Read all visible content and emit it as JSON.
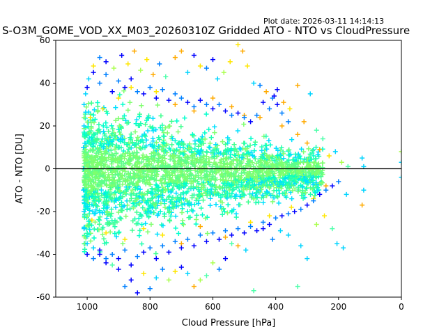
{
  "plot_date": "Plot date: 2026-03-11 14:14:13",
  "chart_data": {
    "type": "scatter",
    "title": "S-O3M_GOME_VOD_XX_M03_20260310Z Gridded ATO - NTO vs CloudPressure",
    "xlabel": "Cloud Pressure [hPa]",
    "ylabel": "ATO - NTO [DU]",
    "xlim": [
      1100,
      0
    ],
    "ylim": [
      -60,
      60
    ],
    "x_inverted": true,
    "xticks": [
      1000,
      800,
      600,
      400,
      200,
      0
    ],
    "yticks": [
      -60,
      -40,
      -20,
      0,
      20,
      40,
      60
    ],
    "marker": "+",
    "reference_line_y": 0,
    "grid": false,
    "colors": [
      "#0000ff",
      "#0080ff",
      "#00d4ff",
      "#4dffaa",
      "#aaff4d",
      "#ffe600",
      "#ffaa00"
    ],
    "points": [
      [
        1005,
        35,
        2
      ],
      [
        995,
        42,
        2
      ],
      [
        980,
        48,
        5
      ],
      [
        960,
        52,
        1
      ],
      [
        940,
        50,
        0
      ],
      [
        915,
        47,
        4
      ],
      [
        890,
        53,
        0
      ],
      [
        870,
        49,
        5
      ],
      [
        850,
        55,
        6
      ],
      [
        830,
        46,
        4
      ],
      [
        810,
        51,
        5
      ],
      [
        790,
        44,
        6
      ],
      [
        770,
        49,
        1
      ],
      [
        750,
        43,
        3
      ],
      [
        720,
        52,
        6
      ],
      [
        700,
        55,
        6
      ],
      [
        680,
        45,
        2
      ],
      [
        660,
        53,
        0
      ],
      [
        640,
        48,
        5
      ],
      [
        620,
        47,
        1
      ],
      [
        600,
        51,
        0
      ],
      [
        585,
        42,
        2
      ],
      [
        565,
        45,
        4
      ],
      [
        545,
        50,
        5
      ],
      [
        520,
        58,
        5
      ],
      [
        505,
        55,
        6
      ],
      [
        490,
        48,
        5
      ],
      [
        470,
        40,
        2
      ],
      [
        450,
        39,
        1
      ],
      [
        430,
        36,
        6
      ],
      [
        410,
        33,
        1
      ],
      [
        395,
        37,
        0
      ],
      [
        375,
        31,
        6
      ],
      [
        355,
        28,
        5
      ],
      [
        330,
        39,
        6
      ],
      [
        310,
        22,
        6
      ],
      [
        290,
        35,
        2
      ],
      [
        270,
        18,
        3
      ],
      [
        250,
        14,
        3
      ],
      [
        230,
        6,
        5
      ],
      [
        210,
        8,
        2
      ],
      [
        190,
        3,
        4
      ],
      [
        170,
        1,
        3
      ],
      [
        120,
        1,
        2
      ],
      [
        125,
        5,
        2
      ],
      [
        0,
        8,
        4
      ],
      [
        0,
        3,
        2
      ],
      [
        0,
        -4,
        2
      ],
      [
        120,
        -10,
        2
      ],
      [
        125,
        -17,
        6
      ],
      [
        175,
        -12,
        2
      ],
      [
        185,
        -37,
        2
      ],
      [
        205,
        -35,
        2
      ],
      [
        220,
        -28,
        3
      ],
      [
        245,
        -22,
        5
      ],
      [
        270,
        -26,
        4
      ],
      [
        300,
        -42,
        2
      ],
      [
        320,
        -36,
        2
      ],
      [
        330,
        -55,
        3
      ],
      [
        360,
        -31,
        2
      ],
      [
        385,
        -29,
        2
      ],
      [
        410,
        -33,
        1
      ],
      [
        440,
        -28,
        0
      ],
      [
        470,
        -57,
        3
      ],
      [
        495,
        -38,
        2
      ],
      [
        520,
        -36,
        6
      ],
      [
        540,
        -35,
        3
      ],
      [
        560,
        -42,
        0
      ],
      [
        580,
        -47,
        1
      ],
      [
        600,
        -44,
        4
      ],
      [
        620,
        -50,
        3
      ],
      [
        640,
        -52,
        4
      ],
      [
        660,
        -55,
        6
      ],
      [
        680,
        -49,
        2
      ],
      [
        700,
        -46,
        0
      ],
      [
        720,
        -48,
        5
      ],
      [
        740,
        -52,
        4
      ],
      [
        760,
        -47,
        1
      ],
      [
        780,
        -51,
        2
      ],
      [
        800,
        -56,
        1
      ],
      [
        820,
        -49,
        5
      ],
      [
        840,
        -58,
        0
      ],
      [
        860,
        -52,
        0
      ],
      [
        880,
        -55,
        1
      ],
      [
        900,
        -47,
        0
      ],
      [
        920,
        -45,
        3
      ],
      [
        940,
        -42,
        1
      ],
      [
        960,
        -40,
        0
      ],
      [
        980,
        -37,
        2
      ],
      [
        1000,
        -35,
        2
      ],
      [
        1010,
        -28,
        2
      ],
      [
        1010,
        -20,
        2
      ],
      [
        1012,
        -10,
        2
      ],
      [
        1012,
        0,
        2
      ],
      [
        1012,
        10,
        2
      ],
      [
        1010,
        20,
        2
      ],
      [
        1010,
        30,
        2
      ],
      [
        990,
        24,
        5
      ],
      [
        985,
        -24,
        5
      ],
      [
        950,
        28,
        5
      ],
      [
        940,
        -30,
        5
      ],
      [
        900,
        33,
        5
      ],
      [
        880,
        -33,
        5
      ],
      [
        860,
        38,
        5
      ],
      [
        820,
        -28,
        5
      ],
      [
        780,
        36,
        5
      ],
      [
        760,
        -31,
        5
      ],
      [
        720,
        30,
        6
      ],
      [
        700,
        -35,
        6
      ],
      [
        660,
        27,
        6
      ],
      [
        640,
        -27,
        6
      ],
      [
        600,
        33,
        6
      ],
      [
        560,
        -32,
        6
      ],
      [
        540,
        29,
        6
      ],
      [
        500,
        25,
        6
      ],
      [
        480,
        -25,
        5
      ],
      [
        450,
        24,
        6
      ],
      [
        420,
        -22,
        5
      ],
      [
        380,
        20,
        6
      ],
      [
        350,
        -18,
        5
      ],
      [
        330,
        16,
        6
      ],
      [
        300,
        12,
        6
      ],
      [
        280,
        -14,
        5
      ],
      [
        260,
        9,
        6
      ],
      [
        240,
        -8,
        6
      ],
      [
        1000,
        38,
        0
      ],
      [
        980,
        45,
        0
      ],
      [
        960,
        40,
        1
      ],
      [
        940,
        44,
        1
      ],
      [
        920,
        36,
        0
      ],
      [
        900,
        41,
        1
      ],
      [
        880,
        38,
        0
      ],
      [
        860,
        42,
        0
      ],
      [
        840,
        36,
        1
      ],
      [
        820,
        35,
        0
      ],
      [
        800,
        38,
        1
      ],
      [
        780,
        33,
        0
      ],
      [
        760,
        37,
        1
      ],
      [
        740,
        32,
        0
      ],
      [
        720,
        35,
        1
      ],
      [
        700,
        33,
        1
      ],
      [
        680,
        31,
        0
      ],
      [
        660,
        29,
        1
      ],
      [
        640,
        32,
        0
      ],
      [
        620,
        30,
        1
      ],
      [
        600,
        28,
        0
      ],
      [
        580,
        30,
        1
      ],
      [
        560,
        27,
        0
      ],
      [
        540,
        25,
        1
      ],
      [
        520,
        26,
        0
      ],
      [
        500,
        24,
        1
      ],
      [
        480,
        22,
        0
      ],
      [
        460,
        25,
        1
      ],
      [
        440,
        31,
        0
      ],
      [
        420,
        28,
        1
      ],
      [
        405,
        34,
        0
      ],
      [
        395,
        30,
        0
      ],
      [
        380,
        26,
        1
      ],
      [
        360,
        22,
        1
      ],
      [
        1000,
        -40,
        0
      ],
      [
        980,
        -42,
        1
      ],
      [
        960,
        -38,
        0
      ],
      [
        940,
        -44,
        0
      ],
      [
        920,
        -40,
        1
      ],
      [
        900,
        -42,
        0
      ],
      [
        880,
        -38,
        1
      ],
      [
        860,
        -45,
        0
      ],
      [
        840,
        -41,
        1
      ],
      [
        820,
        -39,
        0
      ],
      [
        800,
        -37,
        1
      ],
      [
        780,
        -42,
        0
      ],
      [
        760,
        -36,
        1
      ],
      [
        740,
        -39,
        0
      ],
      [
        720,
        -34,
        1
      ],
      [
        700,
        -37,
        0
      ],
      [
        680,
        -33,
        1
      ],
      [
        660,
        -36,
        0
      ],
      [
        640,
        -31,
        1
      ],
      [
        620,
        -34,
        0
      ],
      [
        600,
        -30,
        1
      ],
      [
        580,
        -33,
        0
      ],
      [
        560,
        -29,
        1
      ],
      [
        540,
        -31,
        0
      ],
      [
        520,
        -28,
        1
      ],
      [
        500,
        -30,
        0
      ],
      [
        480,
        -27,
        1
      ],
      [
        460,
        -29,
        0
      ],
      [
        440,
        -25,
        1
      ],
      [
        420,
        -26,
        0
      ],
      [
        400,
        -23,
        1
      ],
      [
        380,
        -22,
        0
      ],
      [
        360,
        -21,
        1
      ],
      [
        340,
        -20,
        0
      ],
      [
        320,
        -19,
        1
      ],
      [
        300,
        -17,
        0
      ],
      [
        280,
        -15,
        1
      ],
      [
        260,
        -12,
        0
      ],
      [
        240,
        -10,
        1
      ],
      [
        220,
        -8,
        0
      ],
      [
        200,
        -6,
        1
      ]
    ]
  }
}
